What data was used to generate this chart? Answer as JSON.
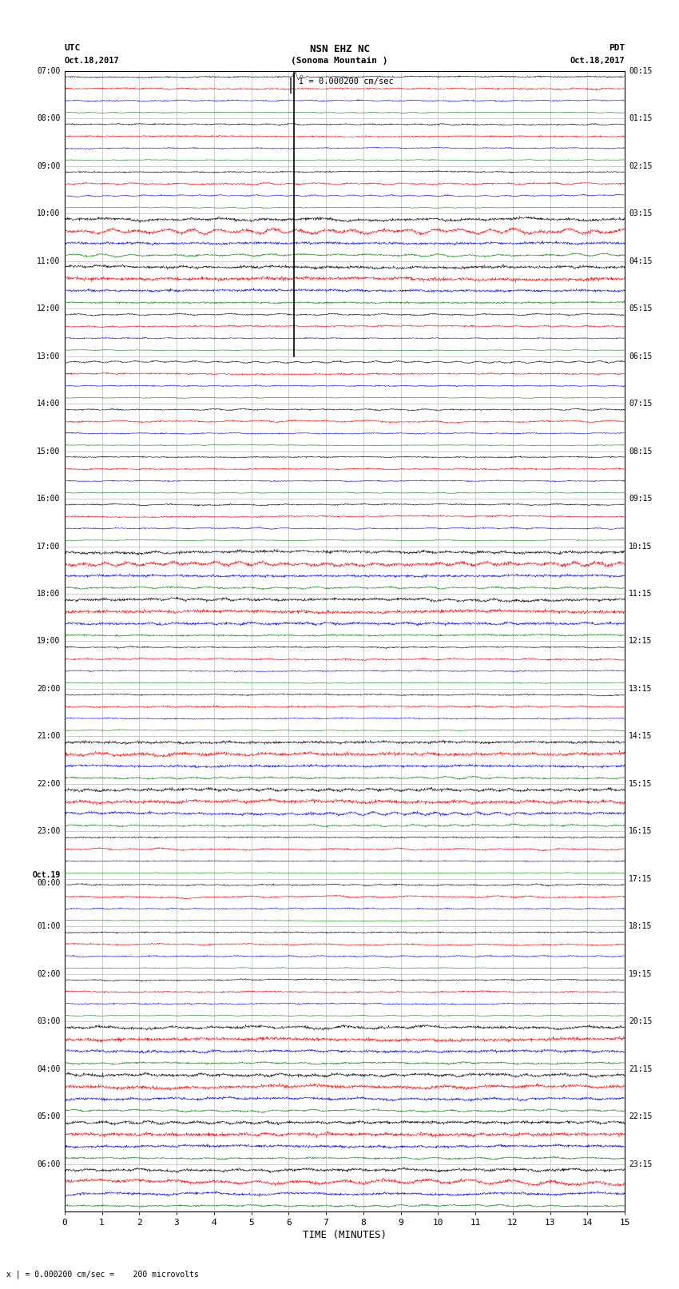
{
  "title_line1": "NSN EHZ NC",
  "title_line2": "(Sonoma Mountain )",
  "scale_label": "I = 0.000200 cm/sec",
  "utc_label": "UTC",
  "utc_date": "Oct.18,2017",
  "pdt_label": "PDT",
  "pdt_date": "Oct.18,2017",
  "bottom_label": "x | = 0.000200 cm/sec =    200 microvolts",
  "xlabel": "TIME (MINUTES)",
  "left_times_utc": [
    "07:00",
    "08:00",
    "09:00",
    "10:00",
    "11:00",
    "12:00",
    "13:00",
    "14:00",
    "15:00",
    "16:00",
    "17:00",
    "18:00",
    "19:00",
    "20:00",
    "21:00",
    "22:00",
    "23:00",
    "Oct.19",
    "01:00",
    "02:00",
    "03:00",
    "04:00",
    "05:00",
    "06:00"
  ],
  "left_times_utc_extra": [
    null,
    null,
    null,
    null,
    null,
    null,
    null,
    null,
    null,
    null,
    null,
    null,
    null,
    null,
    null,
    null,
    null,
    "00:00",
    null,
    null,
    null,
    null,
    null,
    null
  ],
  "right_times_pdt": [
    "00:15",
    "01:15",
    "02:15",
    "03:15",
    "04:15",
    "05:15",
    "06:15",
    "07:15",
    "08:15",
    "09:15",
    "10:15",
    "11:15",
    "12:15",
    "13:15",
    "14:15",
    "15:15",
    "16:15",
    "17:15",
    "18:15",
    "19:15",
    "20:15",
    "21:15",
    "22:15",
    "23:15"
  ],
  "n_rows": 24,
  "n_traces_per_row": 4,
  "colors": [
    "black",
    "red",
    "blue",
    "green"
  ],
  "bg_color": "white",
  "grid_color": "#aaaaaa",
  "spine_color": "black",
  "fig_width": 8.5,
  "fig_height": 16.13,
  "xmin": 0,
  "xmax": 15,
  "xticks": [
    0,
    1,
    2,
    3,
    4,
    5,
    6,
    7,
    8,
    9,
    10,
    11,
    12,
    13,
    14,
    15
  ],
  "earthquake_row": 0,
  "earthquake_col": 0,
  "earthquake_minute": 6.15,
  "earthquake_amplitude": 0.45,
  "earthquake_span_rows": 6,
  "noise_amplitude": 0.025,
  "elevated_noise_rows": [
    3,
    4,
    10,
    11,
    14,
    15,
    20,
    21,
    22,
    23
  ],
  "elevated_noise_amp": 0.055,
  "red_spike_row": 4,
  "red_spike_minute": 14.2,
  "red_spike_amp": 0.12,
  "trace_lw": 0.35
}
